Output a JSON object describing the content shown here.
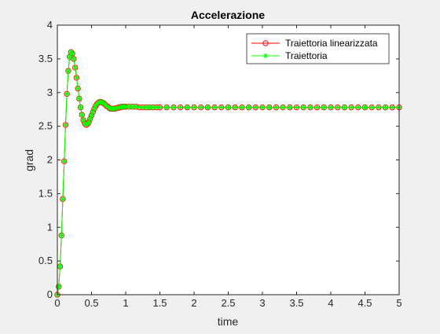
{
  "chart_data": {
    "type": "line",
    "title": "Accelerazione",
    "xlabel": "time",
    "ylabel": "grad",
    "xlim": [
      0,
      5
    ],
    "ylim": [
      0,
      4
    ],
    "x_ticks": [
      "0",
      "0.5",
      "1",
      "1.5",
      "2",
      "2.5",
      "3",
      "3.5",
      "4",
      "4.5",
      "5"
    ],
    "y_ticks": [
      "0",
      "0.5",
      "1",
      "1.5",
      "2",
      "2.5",
      "3",
      "3.5",
      "4"
    ],
    "grid": false,
    "legend_position": "top-right",
    "x": [
      0.0,
      0.02,
      0.04,
      0.06,
      0.08,
      0.1,
      0.12,
      0.14,
      0.16,
      0.18,
      0.2,
      0.22,
      0.24,
      0.26,
      0.28,
      0.3,
      0.32,
      0.34,
      0.36,
      0.38,
      0.4,
      0.42,
      0.44,
      0.46,
      0.48,
      0.5,
      0.52,
      0.54,
      0.56,
      0.58,
      0.6,
      0.62,
      0.64,
      0.66,
      0.68,
      0.7,
      0.72,
      0.74,
      0.76,
      0.78,
      0.8,
      0.82,
      0.84,
      0.86,
      0.88,
      0.9,
      0.92,
      0.94,
      0.96,
      0.98,
      1.0,
      1.05,
      1.1,
      1.15,
      1.2,
      1.25,
      1.3,
      1.35,
      1.4,
      1.45,
      1.5,
      1.6,
      1.7,
      1.8,
      1.9,
      2.0,
      2.1,
      2.2,
      2.3,
      2.4,
      2.5,
      2.6,
      2.7,
      2.8,
      2.9,
      3.0,
      3.1,
      3.2,
      3.3,
      3.4,
      3.5,
      3.6,
      3.7,
      3.8,
      3.9,
      4.0,
      4.1,
      4.2,
      4.3,
      4.4,
      4.5,
      4.6,
      4.7,
      4.8,
      4.9,
      5.0
    ],
    "series": [
      {
        "name": "Traiettoria linearizzata",
        "color": "#ff0000",
        "marker": "circle",
        "values": [
          0.0,
          0.12,
          0.42,
          0.88,
          1.42,
          1.98,
          2.52,
          2.98,
          3.32,
          3.53,
          3.6,
          3.58,
          3.5,
          3.37,
          3.22,
          3.06,
          2.91,
          2.78,
          2.67,
          2.59,
          2.54,
          2.52,
          2.53,
          2.56,
          2.61,
          2.66,
          2.71,
          2.76,
          2.8,
          2.83,
          2.85,
          2.86,
          2.86,
          2.85,
          2.84,
          2.82,
          2.8,
          2.79,
          2.77,
          2.76,
          2.76,
          2.76,
          2.76,
          2.77,
          2.77,
          2.78,
          2.78,
          2.79,
          2.79,
          2.79,
          2.79,
          2.79,
          2.79,
          2.79,
          2.78,
          2.78,
          2.78,
          2.78,
          2.78,
          2.78,
          2.78,
          2.78,
          2.78,
          2.78,
          2.78,
          2.78,
          2.78,
          2.78,
          2.78,
          2.78,
          2.78,
          2.78,
          2.78,
          2.78,
          2.78,
          2.78,
          2.78,
          2.78,
          2.78,
          2.78,
          2.78,
          2.78,
          2.78,
          2.78,
          2.78,
          2.78,
          2.78,
          2.78,
          2.78,
          2.78,
          2.78,
          2.78,
          2.78,
          2.78,
          2.78,
          2.78
        ]
      },
      {
        "name": "Traiettoria",
        "color": "#00ff00",
        "marker": "asterisk",
        "values": [
          0.0,
          0.12,
          0.42,
          0.88,
          1.42,
          1.98,
          2.52,
          2.98,
          3.32,
          3.53,
          3.6,
          3.58,
          3.5,
          3.37,
          3.22,
          3.06,
          2.91,
          2.78,
          2.67,
          2.59,
          2.54,
          2.52,
          2.53,
          2.56,
          2.61,
          2.66,
          2.71,
          2.76,
          2.8,
          2.83,
          2.85,
          2.86,
          2.86,
          2.85,
          2.84,
          2.82,
          2.8,
          2.79,
          2.77,
          2.76,
          2.76,
          2.76,
          2.76,
          2.77,
          2.77,
          2.78,
          2.78,
          2.79,
          2.79,
          2.79,
          2.79,
          2.79,
          2.79,
          2.79,
          2.78,
          2.78,
          2.78,
          2.78,
          2.78,
          2.78,
          2.78,
          2.78,
          2.78,
          2.78,
          2.78,
          2.78,
          2.78,
          2.78,
          2.78,
          2.78,
          2.78,
          2.78,
          2.78,
          2.78,
          2.78,
          2.78,
          2.78,
          2.78,
          2.78,
          2.78,
          2.78,
          2.78,
          2.78,
          2.78,
          2.78,
          2.78,
          2.78,
          2.78,
          2.78,
          2.78,
          2.78,
          2.78,
          2.78,
          2.78,
          2.78,
          2.78
        ]
      }
    ]
  }
}
